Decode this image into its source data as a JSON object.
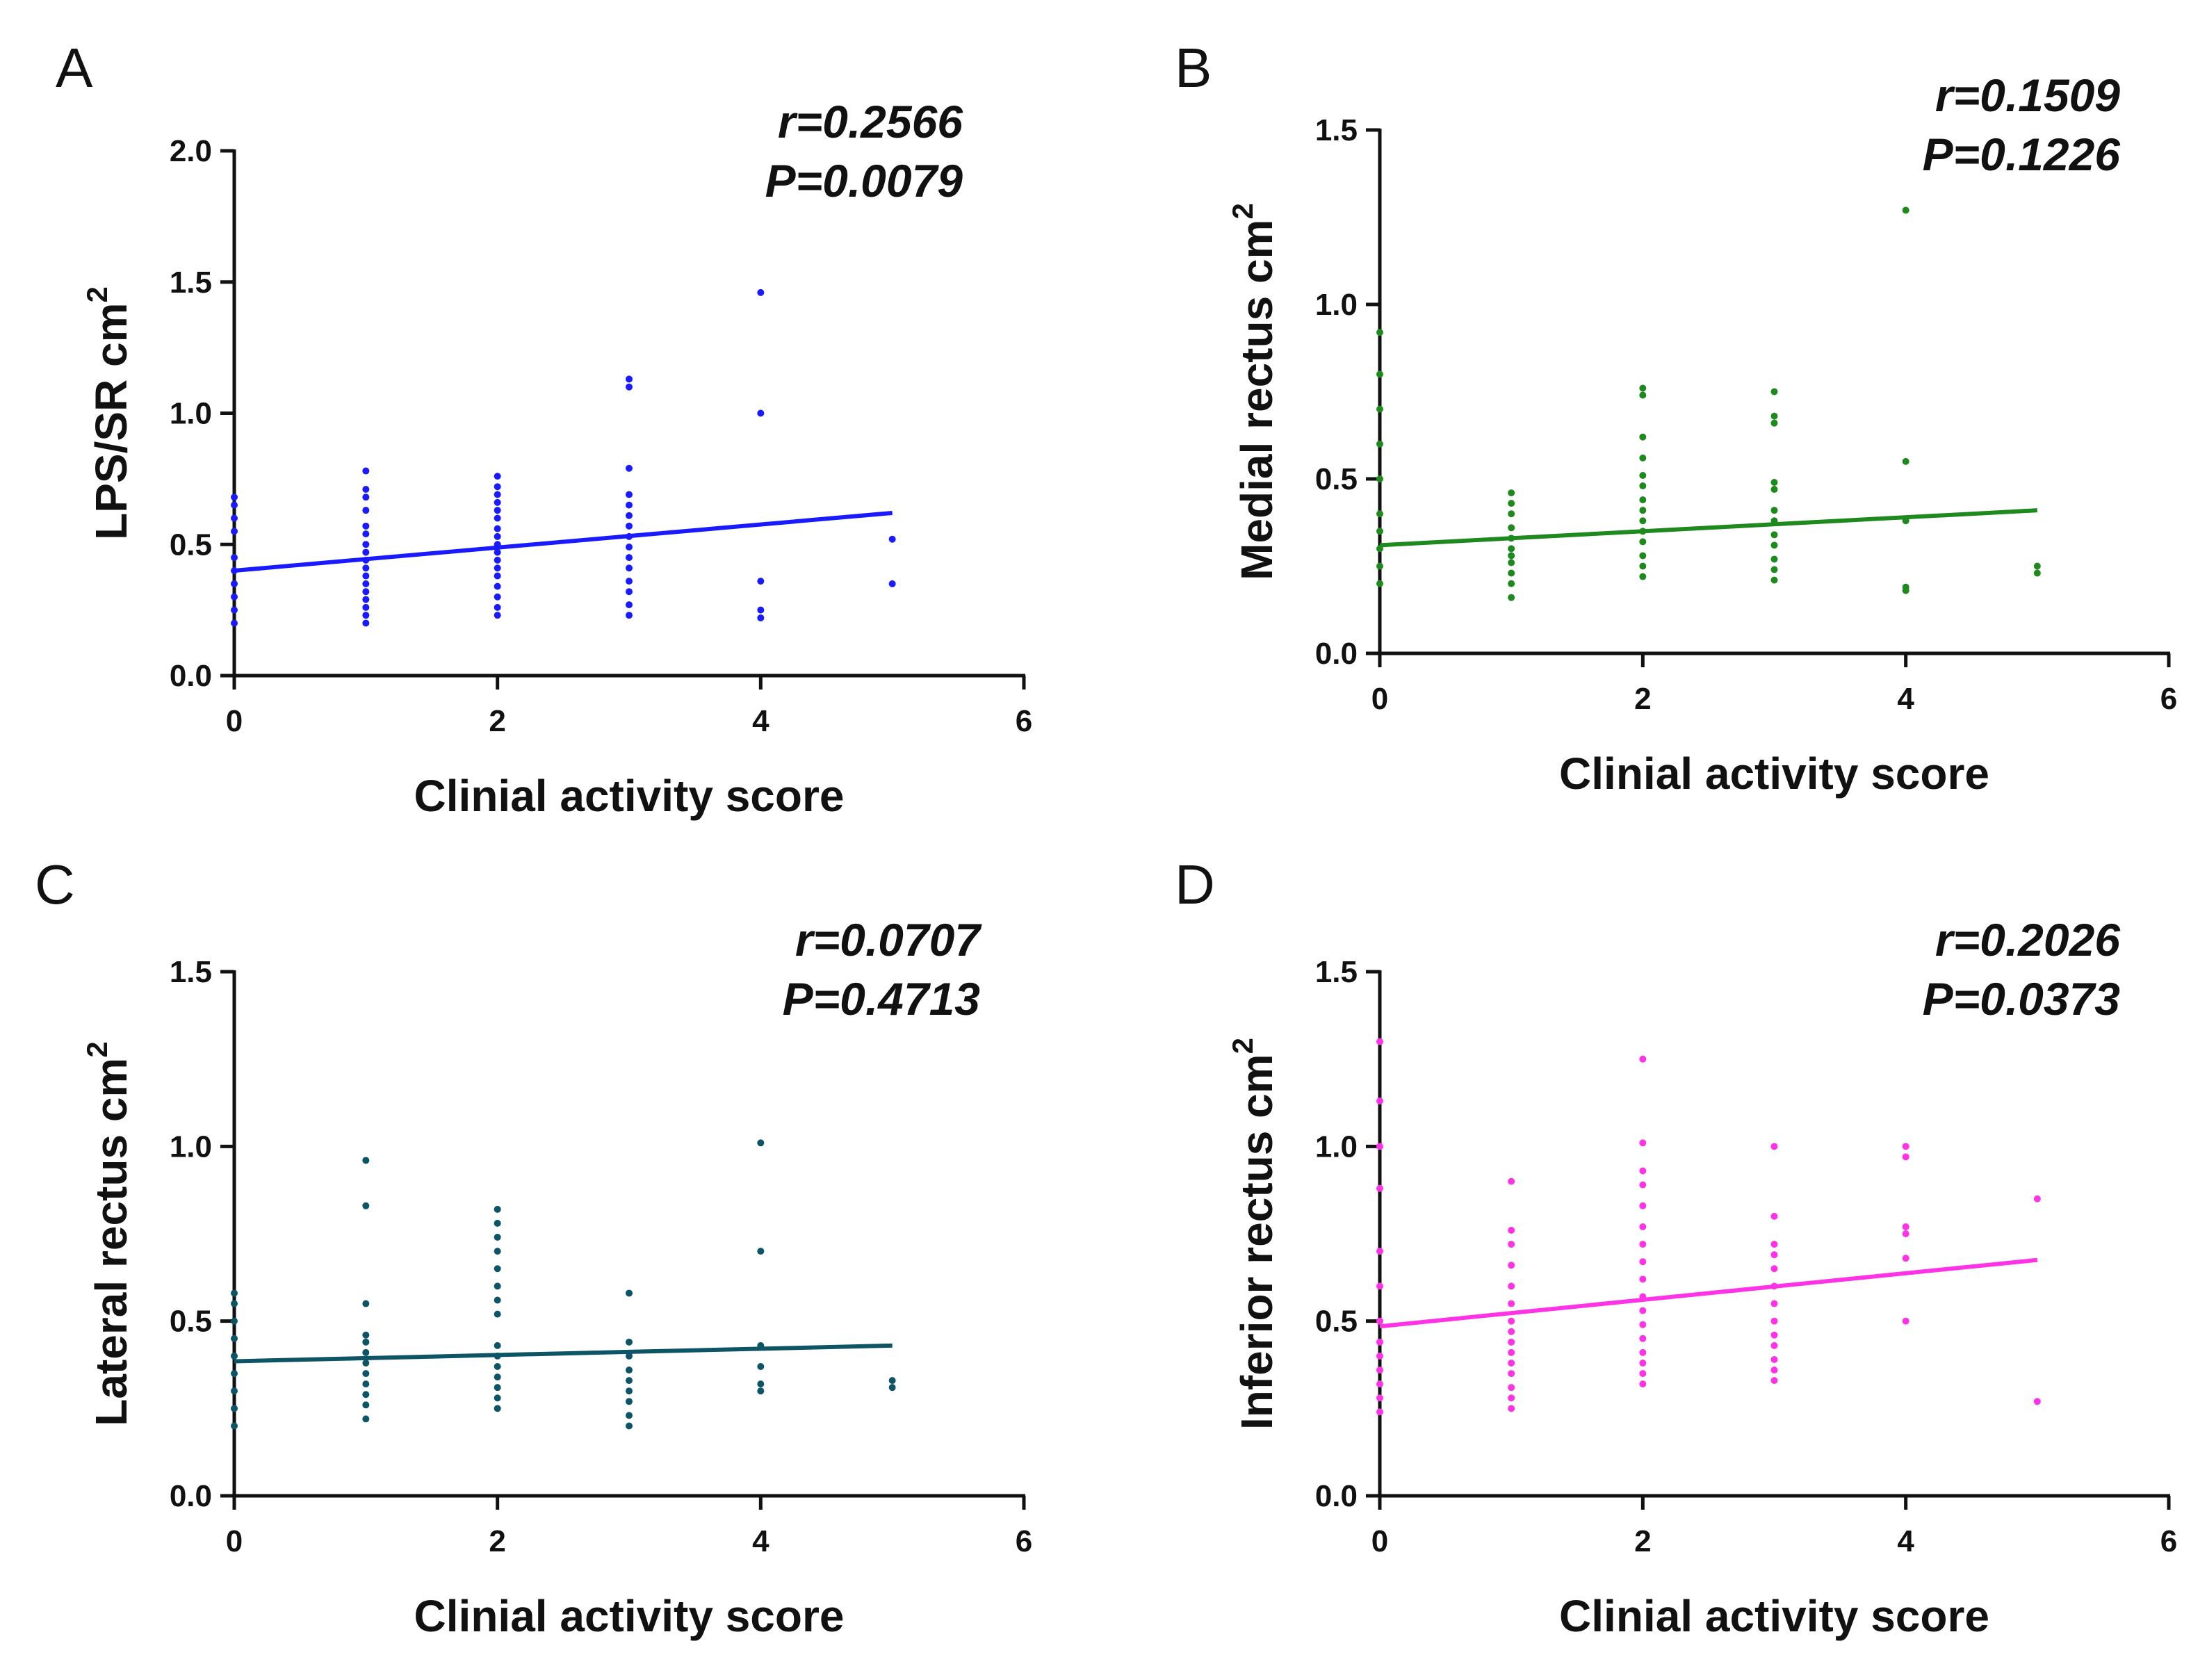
{
  "chart_data": [
    {
      "panel": "A",
      "type": "scatter",
      "xlabel": "Clinial activity score",
      "ylabel": "LPS/SR cm",
      "ylabel_sup": "2",
      "xlim": [
        0,
        6
      ],
      "ylim": [
        0,
        2.0
      ],
      "xticks": [
        0,
        2,
        4,
        6
      ],
      "xtick_labels": [
        "0",
        "2",
        "4",
        "6"
      ],
      "yticks": [
        0,
        0.5,
        1.0,
        1.5,
        2.0
      ],
      "ytick_labels": [
        "0.0",
        "0.5",
        "1.0",
        "1.5",
        "2.0"
      ],
      "r_text": "r=0.2566",
      "p_text": "P=0.0079",
      "color": "#1a1aff",
      "fit": {
        "x0": 0,
        "y0": 0.4,
        "x1": 5,
        "y1": 0.62
      },
      "points": [
        [
          0,
          0.2
        ],
        [
          0,
          0.25
        ],
        [
          0,
          0.3
        ],
        [
          0,
          0.35
        ],
        [
          0,
          0.4
        ],
        [
          0,
          0.45
        ],
        [
          0,
          0.55
        ],
        [
          0,
          0.6
        ],
        [
          0,
          0.65
        ],
        [
          0,
          0.68
        ],
        [
          1,
          0.2
        ],
        [
          1,
          0.23
        ],
        [
          1,
          0.26
        ],
        [
          1,
          0.29
        ],
        [
          1,
          0.32
        ],
        [
          1,
          0.35
        ],
        [
          1,
          0.38
        ],
        [
          1,
          0.41
        ],
        [
          1,
          0.44
        ],
        [
          1,
          0.47
        ],
        [
          1,
          0.5
        ],
        [
          1,
          0.54
        ],
        [
          1,
          0.57
        ],
        [
          1,
          0.63
        ],
        [
          1,
          0.68
        ],
        [
          1,
          0.71
        ],
        [
          1,
          0.78
        ],
        [
          2,
          0.23
        ],
        [
          2,
          0.26
        ],
        [
          2,
          0.3
        ],
        [
          2,
          0.34
        ],
        [
          2,
          0.38
        ],
        [
          2,
          0.41
        ],
        [
          2,
          0.44
        ],
        [
          2,
          0.47
        ],
        [
          2,
          0.5
        ],
        [
          2,
          0.53
        ],
        [
          2,
          0.56
        ],
        [
          2,
          0.6
        ],
        [
          2,
          0.63
        ],
        [
          2,
          0.66
        ],
        [
          2,
          0.69
        ],
        [
          2,
          0.72
        ],
        [
          2,
          0.76
        ],
        [
          3,
          0.23
        ],
        [
          3,
          0.27
        ],
        [
          3,
          0.32
        ],
        [
          3,
          0.36
        ],
        [
          3,
          0.41
        ],
        [
          3,
          0.45
        ],
        [
          3,
          0.49
        ],
        [
          3,
          0.53
        ],
        [
          3,
          0.57
        ],
        [
          3,
          0.61
        ],
        [
          3,
          0.65
        ],
        [
          3,
          0.69
        ],
        [
          3,
          0.79
        ],
        [
          3,
          1.1
        ],
        [
          3,
          1.13
        ],
        [
          4,
          0.22
        ],
        [
          4,
          0.25
        ],
        [
          4,
          0.36
        ],
        [
          4,
          1.0
        ],
        [
          4,
          1.46
        ],
        [
          5,
          0.35
        ],
        [
          5,
          0.52
        ]
      ]
    },
    {
      "panel": "B",
      "type": "scatter",
      "xlabel": "Clinial activity score",
      "ylabel": "Medial rectus cm",
      "ylabel_sup": "2",
      "xlim": [
        0,
        6
      ],
      "ylim": [
        0,
        1.5
      ],
      "xticks": [
        0,
        2,
        4,
        6
      ],
      "xtick_labels": [
        "0",
        "2",
        "4",
        "6"
      ],
      "yticks": [
        0,
        0.5,
        1.0,
        1.5
      ],
      "ytick_labels": [
        "0.0",
        "0.5",
        "1.0",
        "1.5"
      ],
      "r_text": "r=0.1509",
      "p_text": "P=0.1226",
      "color": "#1e8a1e",
      "fit": {
        "x0": 0,
        "y0": 0.31,
        "x1": 5,
        "y1": 0.41
      },
      "points": [
        [
          0,
          0.2
        ],
        [
          0,
          0.25
        ],
        [
          0,
          0.3
        ],
        [
          0,
          0.35
        ],
        [
          0,
          0.4
        ],
        [
          0,
          0.5
        ],
        [
          0,
          0.6
        ],
        [
          0,
          0.7
        ],
        [
          0,
          0.8
        ],
        [
          0,
          0.92
        ],
        [
          1,
          0.16
        ],
        [
          1,
          0.2
        ],
        [
          1,
          0.23
        ],
        [
          1,
          0.26
        ],
        [
          1,
          0.28
        ],
        [
          1,
          0.3
        ],
        [
          1,
          0.33
        ],
        [
          1,
          0.36
        ],
        [
          1,
          0.4
        ],
        [
          1,
          0.43
        ],
        [
          1,
          0.46
        ],
        [
          2,
          0.22
        ],
        [
          2,
          0.25
        ],
        [
          2,
          0.28
        ],
        [
          2,
          0.32
        ],
        [
          2,
          0.35
        ],
        [
          2,
          0.38
        ],
        [
          2,
          0.41
        ],
        [
          2,
          0.44
        ],
        [
          2,
          0.48
        ],
        [
          2,
          0.51
        ],
        [
          2,
          0.56
        ],
        [
          2,
          0.62
        ],
        [
          2,
          0.74
        ],
        [
          2,
          0.76
        ],
        [
          3,
          0.21
        ],
        [
          3,
          0.24
        ],
        [
          3,
          0.27
        ],
        [
          3,
          0.31
        ],
        [
          3,
          0.34
        ],
        [
          3,
          0.38
        ],
        [
          3,
          0.41
        ],
        [
          3,
          0.47
        ],
        [
          3,
          0.49
        ],
        [
          3,
          0.66
        ],
        [
          3,
          0.68
        ],
        [
          3,
          0.75
        ],
        [
          4,
          0.18
        ],
        [
          4,
          0.19
        ],
        [
          4,
          0.38
        ],
        [
          4,
          0.55
        ],
        [
          4,
          1.27
        ],
        [
          5,
          0.23
        ],
        [
          5,
          0.25
        ]
      ]
    },
    {
      "panel": "C",
      "type": "scatter",
      "xlabel": "Clinial activity score",
      "ylabel": "Lateral rectus cm",
      "ylabel_sup": "2",
      "xlim": [
        0,
        6
      ],
      "ylim": [
        0,
        1.5
      ],
      "xticks": [
        0,
        2,
        4,
        6
      ],
      "xtick_labels": [
        "0",
        "2",
        "4",
        "6"
      ],
      "yticks": [
        0,
        0.5,
        1.0,
        1.5
      ],
      "ytick_labels": [
        "0.0",
        "0.5",
        "1.0",
        "1.5"
      ],
      "r_text": "r=0.0707",
      "p_text": "P=0.4713",
      "color": "#0d5566",
      "fit": {
        "x0": 0,
        "y0": 0.385,
        "x1": 5,
        "y1": 0.43
      },
      "points": [
        [
          0,
          0.2
        ],
        [
          0,
          0.25
        ],
        [
          0,
          0.3
        ],
        [
          0,
          0.35
        ],
        [
          0,
          0.4
        ],
        [
          0,
          0.45
        ],
        [
          0,
          0.5
        ],
        [
          0,
          0.55
        ],
        [
          0,
          0.58
        ],
        [
          1,
          0.22
        ],
        [
          1,
          0.26
        ],
        [
          1,
          0.29
        ],
        [
          1,
          0.32
        ],
        [
          1,
          0.35
        ],
        [
          1,
          0.38
        ],
        [
          1,
          0.41
        ],
        [
          1,
          0.44
        ],
        [
          1,
          0.46
        ],
        [
          1,
          0.55
        ],
        [
          1,
          0.83
        ],
        [
          1,
          0.96
        ],
        [
          2,
          0.25
        ],
        [
          2,
          0.28
        ],
        [
          2,
          0.31
        ],
        [
          2,
          0.34
        ],
        [
          2,
          0.37
        ],
        [
          2,
          0.4
        ],
        [
          2,
          0.43
        ],
        [
          2,
          0.52
        ],
        [
          2,
          0.56
        ],
        [
          2,
          0.6
        ],
        [
          2,
          0.65
        ],
        [
          2,
          0.7
        ],
        [
          2,
          0.74
        ],
        [
          2,
          0.78
        ],
        [
          2,
          0.82
        ],
        [
          3,
          0.2
        ],
        [
          3,
          0.23
        ],
        [
          3,
          0.27
        ],
        [
          3,
          0.3
        ],
        [
          3,
          0.33
        ],
        [
          3,
          0.36
        ],
        [
          3,
          0.4
        ],
        [
          3,
          0.44
        ],
        [
          3,
          0.58
        ],
        [
          4,
          0.3
        ],
        [
          4,
          0.32
        ],
        [
          4,
          0.37
        ],
        [
          4,
          0.43
        ],
        [
          4,
          0.7
        ],
        [
          4,
          1.01
        ],
        [
          5,
          0.31
        ],
        [
          5,
          0.33
        ]
      ]
    },
    {
      "panel": "D",
      "type": "scatter",
      "xlabel": "Clinial activity score",
      "ylabel": "Inferior rectus cm",
      "ylabel_sup": "2",
      "xlim": [
        0,
        6
      ],
      "ylim": [
        0,
        1.5
      ],
      "xticks": [
        0,
        2,
        4,
        6
      ],
      "xtick_labels": [
        "0",
        "2",
        "4",
        "6"
      ],
      "yticks": [
        0,
        0.5,
        1.0,
        1.5
      ],
      "ytick_labels": [
        "0.0",
        "0.5",
        "1.0",
        "1.5"
      ],
      "r_text": "r=0.2026",
      "p_text": "P=0.0373",
      "color": "#ff33e6",
      "fit": {
        "x0": 0,
        "y0": 0.485,
        "x1": 5,
        "y1": 0.675
      },
      "points": [
        [
          0,
          0.24
        ],
        [
          0,
          0.28
        ],
        [
          0,
          0.32
        ],
        [
          0,
          0.36
        ],
        [
          0,
          0.4
        ],
        [
          0,
          0.44
        ],
        [
          0,
          0.5
        ],
        [
          0,
          0.6
        ],
        [
          0,
          0.7
        ],
        [
          0,
          0.88
        ],
        [
          0,
          1.0
        ],
        [
          0,
          1.13
        ],
        [
          0,
          1.3
        ],
        [
          1,
          0.25
        ],
        [
          1,
          0.28
        ],
        [
          1,
          0.31
        ],
        [
          1,
          0.35
        ],
        [
          1,
          0.38
        ],
        [
          1,
          0.41
        ],
        [
          1,
          0.44
        ],
        [
          1,
          0.47
        ],
        [
          1,
          0.5
        ],
        [
          1,
          0.55
        ],
        [
          1,
          0.6
        ],
        [
          1,
          0.66
        ],
        [
          1,
          0.72
        ],
        [
          1,
          0.76
        ],
        [
          1,
          0.9
        ],
        [
          2,
          0.32
        ],
        [
          2,
          0.35
        ],
        [
          2,
          0.38
        ],
        [
          2,
          0.41
        ],
        [
          2,
          0.45
        ],
        [
          2,
          0.49
        ],
        [
          2,
          0.53
        ],
        [
          2,
          0.57
        ],
        [
          2,
          0.62
        ],
        [
          2,
          0.67
        ],
        [
          2,
          0.72
        ],
        [
          2,
          0.77
        ],
        [
          2,
          0.83
        ],
        [
          2,
          0.89
        ],
        [
          2,
          0.93
        ],
        [
          2,
          1.01
        ],
        [
          2,
          1.25
        ],
        [
          3,
          0.33
        ],
        [
          3,
          0.36
        ],
        [
          3,
          0.39
        ],
        [
          3,
          0.43
        ],
        [
          3,
          0.46
        ],
        [
          3,
          0.5
        ],
        [
          3,
          0.55
        ],
        [
          3,
          0.6
        ],
        [
          3,
          0.65
        ],
        [
          3,
          0.69
        ],
        [
          3,
          0.72
        ],
        [
          3,
          0.8
        ],
        [
          3,
          1.0
        ],
        [
          4,
          0.5
        ],
        [
          4,
          0.68
        ],
        [
          4,
          0.75
        ],
        [
          4,
          0.77
        ],
        [
          4,
          0.97
        ],
        [
          4,
          1.0
        ],
        [
          5,
          0.27
        ],
        [
          5,
          0.85
        ]
      ]
    }
  ]
}
